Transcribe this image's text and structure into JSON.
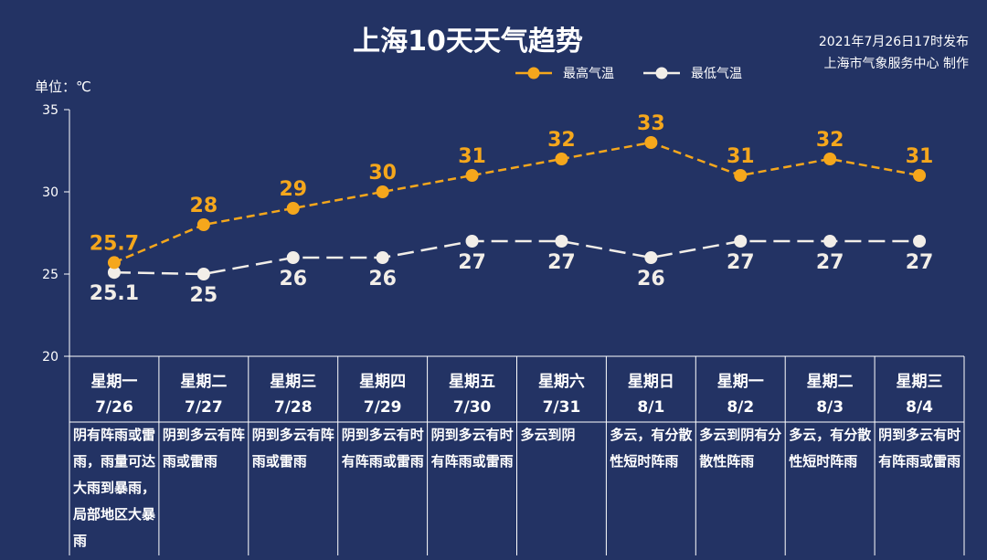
{
  "header": {
    "title": "上海10天天气趋势",
    "publish_line1": "2021年7月26日17时发布",
    "publish_line2": "上海市气象服务中心 制作",
    "unit": "单位：℃"
  },
  "colors": {
    "background": "#233364",
    "high": "#F5A71C",
    "low": "#F2EEE8",
    "axis": "#FFFFFF"
  },
  "chart_data": {
    "type": "line",
    "title": "上海10天天气趋势",
    "ylabel": "单位：℃",
    "ylim": [
      20,
      35
    ],
    "yticks": [
      20,
      25,
      30,
      35
    ],
    "legend_position": "top-right",
    "grid": false,
    "categories": [
      {
        "weekday": "星期一",
        "date": "7/26"
      },
      {
        "weekday": "星期二",
        "date": "7/27"
      },
      {
        "weekday": "星期三",
        "date": "7/28"
      },
      {
        "weekday": "星期四",
        "date": "7/29"
      },
      {
        "weekday": "星期五",
        "date": "7/30"
      },
      {
        "weekday": "星期六",
        "date": "7/31"
      },
      {
        "weekday": "星期日",
        "date": "8/1"
      },
      {
        "weekday": "星期一",
        "date": "8/2"
      },
      {
        "weekday": "星期二",
        "date": "8/3"
      },
      {
        "weekday": "星期三",
        "date": "8/4"
      }
    ],
    "series": [
      {
        "name": "最高气温",
        "values": [
          25.7,
          28,
          29,
          30,
          31,
          32,
          33,
          31,
          32,
          31
        ],
        "labels": [
          "25.7",
          "28",
          "29",
          "30",
          "31",
          "32",
          "33",
          "31",
          "32",
          "31"
        ]
      },
      {
        "name": "最低气温",
        "values": [
          25.1,
          25,
          26,
          26,
          27,
          27,
          26,
          27,
          27,
          27
        ],
        "labels": [
          "25.1",
          "25",
          "26",
          "26",
          "27",
          "27",
          "26",
          "27",
          "27",
          "27"
        ]
      }
    ],
    "descriptions": [
      "阴有阵雨或雷雨，雨量可达大雨到暴雨，局部地区大暴雨",
      "阴到多云有阵雨或雷雨",
      "阴到多云有阵雨或雷雨",
      "阴到多云有时有阵雨或雷雨",
      "阴到多云有时有阵雨或雷雨",
      "多云到阴",
      "多云，有分散性短时阵雨",
      "多云到阴有分散性阵雨",
      "多云，有分散性短时阵雨",
      "阴到多云有时有阵雨或雷雨"
    ]
  }
}
